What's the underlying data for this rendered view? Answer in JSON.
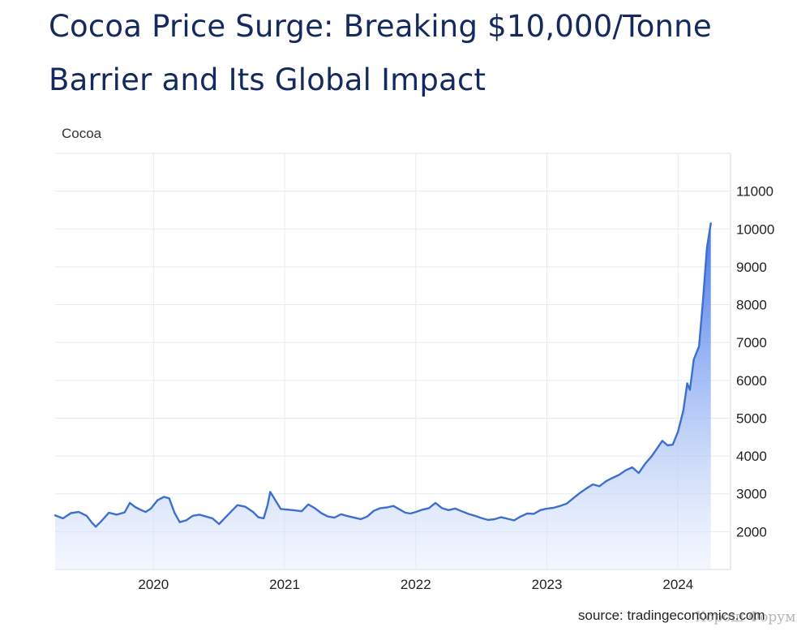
{
  "article": {
    "title_line1": "Cocoa Price Surge: Breaking $10,000/Tonne",
    "title_line2": "Barrier and Its Global Impact"
  },
  "chart_data": {
    "type": "area",
    "title": "Cocoa",
    "xlabel": "",
    "ylabel": "",
    "x_ticks": [
      "2020",
      "2021",
      "2022",
      "2023",
      "2024"
    ],
    "y_ticks": [
      2000,
      3000,
      4000,
      5000,
      6000,
      7000,
      8000,
      9000,
      10000,
      11000
    ],
    "xlim": [
      2019.25,
      2024.4
    ],
    "ylim": [
      1000,
      12000
    ],
    "series": [
      {
        "name": "Cocoa",
        "color": "#3d6fcf",
        "points": [
          [
            2019.25,
            2430
          ],
          [
            2019.31,
            2350
          ],
          [
            2019.37,
            2490
          ],
          [
            2019.43,
            2520
          ],
          [
            2019.49,
            2420
          ],
          [
            2019.53,
            2240
          ],
          [
            2019.56,
            2130
          ],
          [
            2019.6,
            2270
          ],
          [
            2019.66,
            2500
          ],
          [
            2019.72,
            2450
          ],
          [
            2019.78,
            2510
          ],
          [
            2019.82,
            2760
          ],
          [
            2019.86,
            2650
          ],
          [
            2019.9,
            2580
          ],
          [
            2019.94,
            2520
          ],
          [
            2019.98,
            2610
          ],
          [
            2020.03,
            2830
          ],
          [
            2020.08,
            2920
          ],
          [
            2020.12,
            2880
          ],
          [
            2020.16,
            2500
          ],
          [
            2020.2,
            2250
          ],
          [
            2020.25,
            2300
          ],
          [
            2020.3,
            2420
          ],
          [
            2020.35,
            2450
          ],
          [
            2020.4,
            2400
          ],
          [
            2020.45,
            2350
          ],
          [
            2020.5,
            2200
          ],
          [
            2020.55,
            2380
          ],
          [
            2020.6,
            2560
          ],
          [
            2020.64,
            2700
          ],
          [
            2020.7,
            2660
          ],
          [
            2020.76,
            2520
          ],
          [
            2020.8,
            2380
          ],
          [
            2020.84,
            2350
          ],
          [
            2020.87,
            2700
          ],
          [
            2020.89,
            3050
          ],
          [
            2020.93,
            2830
          ],
          [
            2020.97,
            2600
          ],
          [
            2021.03,
            2580
          ],
          [
            2021.08,
            2560
          ],
          [
            2021.13,
            2540
          ],
          [
            2021.18,
            2720
          ],
          [
            2021.23,
            2620
          ],
          [
            2021.28,
            2490
          ],
          [
            2021.33,
            2400
          ],
          [
            2021.38,
            2370
          ],
          [
            2021.43,
            2460
          ],
          [
            2021.48,
            2410
          ],
          [
            2021.53,
            2370
          ],
          [
            2021.58,
            2330
          ],
          [
            2021.63,
            2400
          ],
          [
            2021.68,
            2550
          ],
          [
            2021.73,
            2620
          ],
          [
            2021.78,
            2640
          ],
          [
            2021.83,
            2680
          ],
          [
            2021.88,
            2580
          ],
          [
            2021.92,
            2500
          ],
          [
            2021.96,
            2480
          ],
          [
            2022.0,
            2520
          ],
          [
            2022.05,
            2580
          ],
          [
            2022.1,
            2620
          ],
          [
            2022.15,
            2760
          ],
          [
            2022.2,
            2620
          ],
          [
            2022.25,
            2570
          ],
          [
            2022.3,
            2610
          ],
          [
            2022.35,
            2540
          ],
          [
            2022.4,
            2470
          ],
          [
            2022.45,
            2420
          ],
          [
            2022.5,
            2360
          ],
          [
            2022.55,
            2310
          ],
          [
            2022.6,
            2330
          ],
          [
            2022.65,
            2380
          ],
          [
            2022.7,
            2340
          ],
          [
            2022.75,
            2300
          ],
          [
            2022.8,
            2400
          ],
          [
            2022.85,
            2480
          ],
          [
            2022.9,
            2470
          ],
          [
            2022.95,
            2570
          ],
          [
            2023.0,
            2610
          ],
          [
            2023.05,
            2630
          ],
          [
            2023.1,
            2680
          ],
          [
            2023.15,
            2740
          ],
          [
            2023.2,
            2880
          ],
          [
            2023.25,
            3020
          ],
          [
            2023.3,
            3140
          ],
          [
            2023.35,
            3250
          ],
          [
            2023.4,
            3200
          ],
          [
            2023.45,
            3330
          ],
          [
            2023.5,
            3420
          ],
          [
            2023.55,
            3500
          ],
          [
            2023.6,
            3620
          ],
          [
            2023.65,
            3700
          ],
          [
            2023.7,
            3550
          ],
          [
            2023.75,
            3800
          ],
          [
            2023.8,
            4000
          ],
          [
            2023.85,
            4250
          ],
          [
            2023.88,
            4400
          ],
          [
            2023.92,
            4280
          ],
          [
            2023.96,
            4300
          ],
          [
            2024.0,
            4650
          ],
          [
            2024.04,
            5200
          ],
          [
            2024.07,
            5920
          ],
          [
            2024.09,
            5750
          ],
          [
            2024.12,
            6550
          ],
          [
            2024.16,
            6900
          ],
          [
            2024.19,
            8100
          ],
          [
            2024.22,
            9500
          ],
          [
            2024.25,
            10150
          ]
        ]
      }
    ],
    "source": "source: tradingeconomics.com",
    "watermark": "Хорош-Форум"
  }
}
